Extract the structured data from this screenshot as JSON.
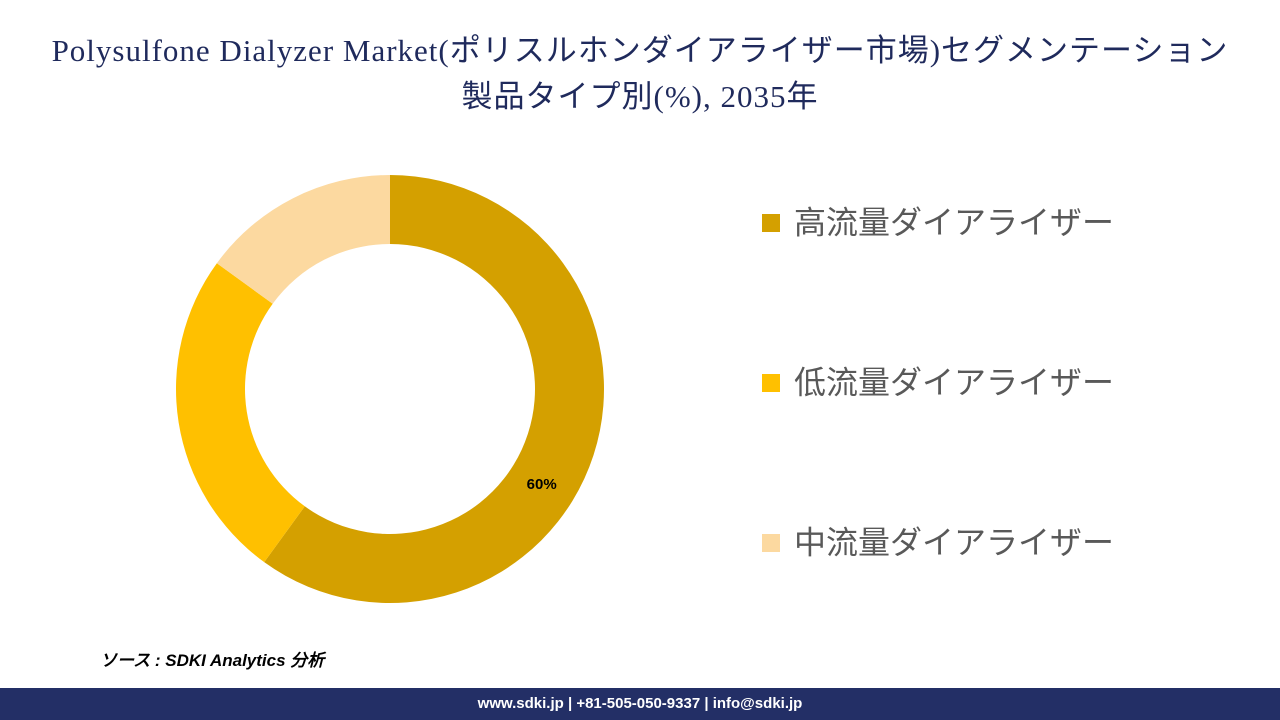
{
  "chart_data": {
    "type": "pie",
    "title": "Polysulfone Dialyzer Market(ポリスルホンダイアライザー市場)セグメンテーション 製品タイプ別(%), 2035年",
    "categories": [
      "高流量ダイアライザー",
      "低流量ダイアライザー",
      "中流量ダイアライザー"
    ],
    "values": [
      60,
      25,
      15
    ],
    "value_labels": [
      "60%",
      null,
      null
    ],
    "colors": [
      "#D4A000",
      "#FFC000",
      "#FCD9A0"
    ],
    "donut": true,
    "legend": "right"
  },
  "source": "ソース : SDKI Analytics 分析",
  "footer": "www.sdki.jp | +81-505-050-9337 | info@sdki.jp"
}
